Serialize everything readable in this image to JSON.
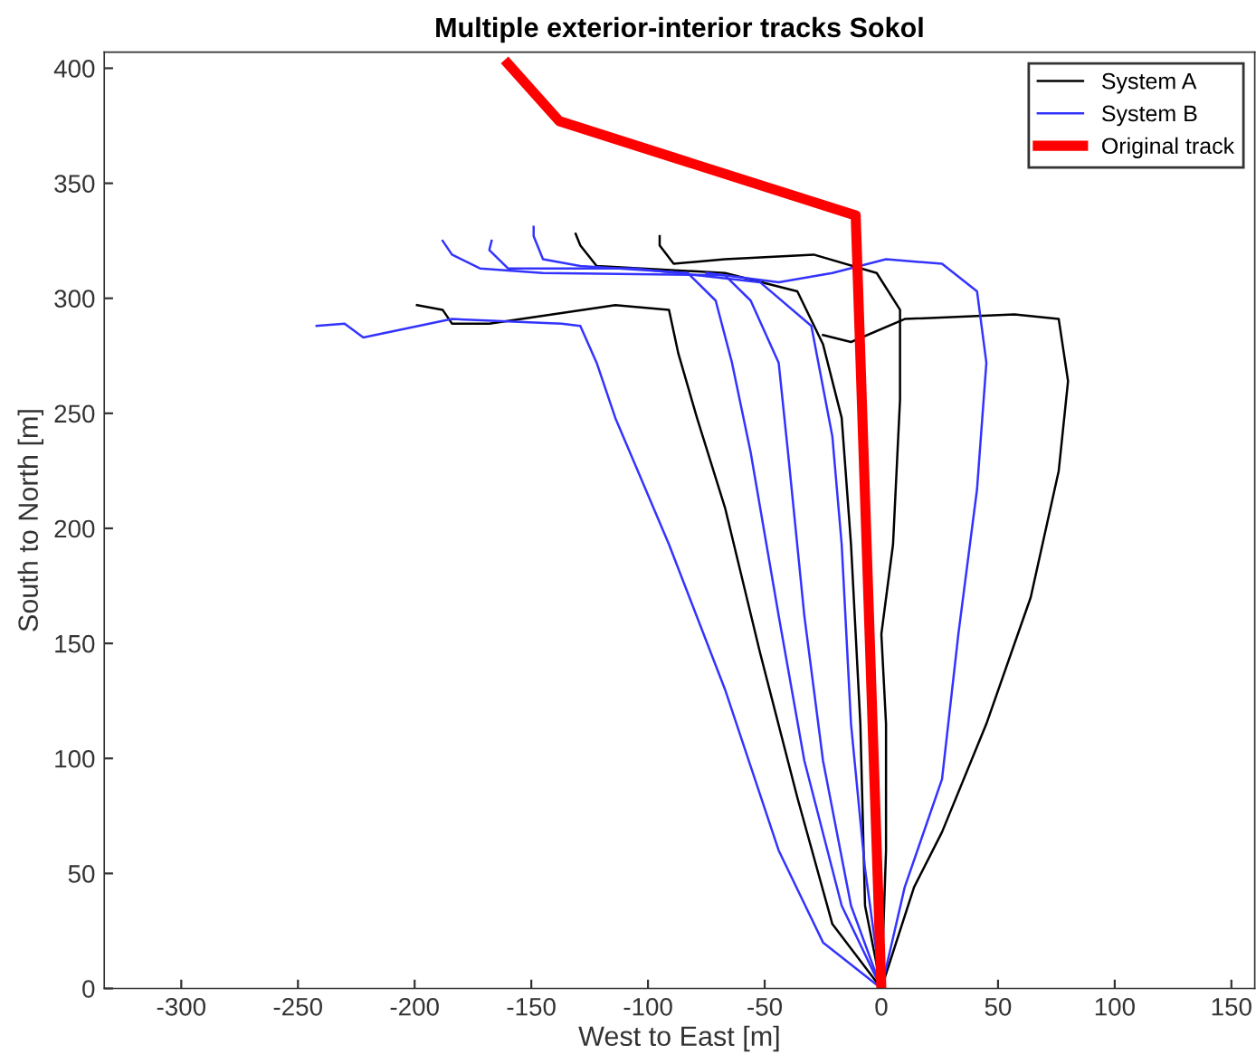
{
  "chart_data": {
    "type": "line",
    "title": "Multiple exterior-interior tracks Sokol",
    "xlabel": "West to East [m]",
    "ylabel": "South to North [m]",
    "xlim": [
      -333,
      160
    ],
    "ylim": [
      0,
      407
    ],
    "xticks": [
      -300,
      -250,
      -200,
      -150,
      -100,
      -50,
      0,
      50,
      100,
      150
    ],
    "yticks": [
      0,
      50,
      100,
      150,
      200,
      250,
      300,
      350,
      400
    ],
    "grid": false,
    "legend": "top right",
    "series": [
      {
        "name": "System A",
        "color": "#000000",
        "x": [
          0,
          14,
          26,
          45,
          64,
          76,
          80,
          76,
          57,
          10,
          -13,
          -25
        ],
        "values": [
          0,
          44,
          68,
          115,
          170,
          225,
          264,
          291,
          293,
          291,
          281,
          284
        ]
      },
      {
        "color": "#000000",
        "x": [
          0,
          2,
          2,
          0,
          5,
          8,
          8,
          -2,
          -29,
          -67,
          -89,
          -95,
          -95
        ],
        "values": [
          0,
          60,
          115,
          154,
          193,
          256,
          295,
          311,
          319,
          317,
          315,
          323,
          327
        ]
      },
      {
        "color": "#000000",
        "x": [
          0,
          -7,
          -9,
          -13,
          -17,
          -25,
          -36,
          -67,
          -122,
          -129,
          -131
        ],
        "values": [
          0,
          36,
          115,
          193,
          248,
          280,
          303,
          311,
          314,
          323,
          328
        ]
      },
      {
        "color": "#000000",
        "x": [
          0,
          -21,
          -36,
          -52,
          -67,
          -79,
          -87,
          -91,
          -114,
          -168,
          -184,
          -188,
          -199
        ],
        "values": [
          0,
          28,
          83,
          146,
          209,
          248,
          276,
          295,
          297,
          289,
          289,
          295,
          297
        ]
      },
      {
        "name": "System B",
        "color": "#3333ff",
        "x": [
          0,
          10,
          26,
          33,
          41,
          45,
          41,
          26,
          2,
          -21,
          -44,
          -75
        ],
        "values": [
          0,
          44,
          91,
          154,
          217,
          272,
          303,
          315,
          317,
          311,
          307,
          311
        ]
      },
      {
        "color": "#3333ff",
        "x": [
          0,
          -7,
          -13,
          -17,
          -21,
          -30,
          -52,
          -106,
          -160,
          -168,
          -167
        ],
        "values": [
          0,
          52,
          115,
          193,
          240,
          288,
          307,
          313,
          313,
          321,
          325
        ]
      },
      {
        "color": "#3333ff",
        "x": [
          0,
          -13,
          -25,
          -33,
          -40,
          -44,
          -56,
          -67,
          -145,
          -172,
          -184,
          -188
        ],
        "values": [
          0,
          36,
          99,
          162,
          233,
          272,
          299,
          310,
          311,
          313,
          319,
          325
        ]
      },
      {
        "color": "#3333ff",
        "x": [
          0,
          -17,
          -33,
          -44,
          -56,
          -64,
          -71,
          -83,
          -129,
          -145,
          -149,
          -149
        ],
        "values": [
          0,
          36,
          99,
          162,
          233,
          272,
          299,
          311,
          314,
          317,
          327,
          331
        ]
      },
      {
        "color": "#3333ff",
        "x": [
          0,
          -25,
          -44,
          -67,
          -91,
          -114,
          -122,
          -129,
          -137,
          -184,
          -222,
          -230,
          -242
        ],
        "values": [
          0,
          20,
          60,
          130,
          193,
          248,
          272,
          288,
          289,
          291,
          283,
          289,
          288
        ]
      },
      {
        "name": "Original track",
        "color": "#ff0000",
        "x": [
          -160,
          -138,
          -11,
          0
        ],
        "values": [
          402,
          377,
          336,
          0
        ]
      }
    ]
  }
}
